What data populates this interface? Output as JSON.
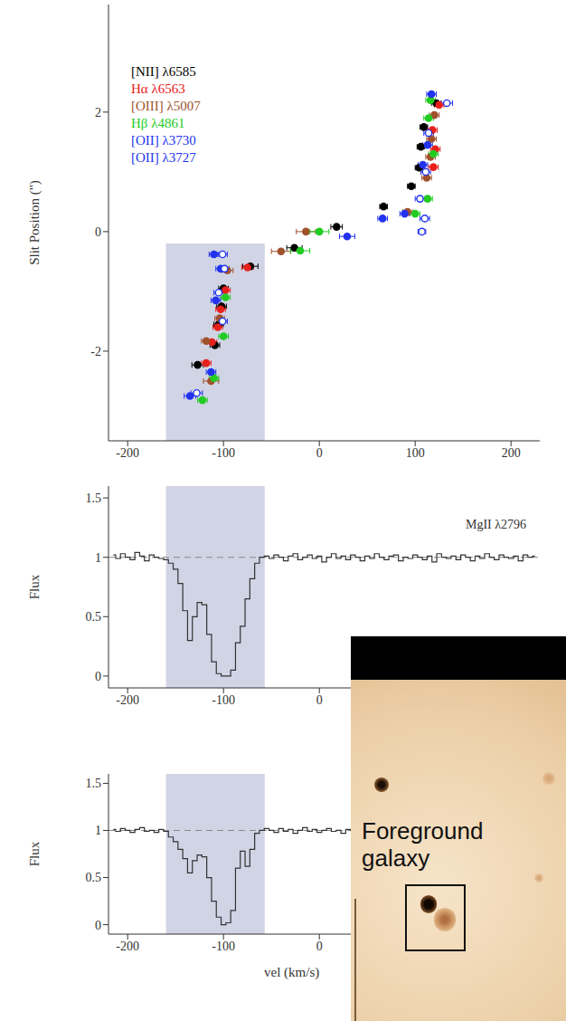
{
  "chart_data": [
    {
      "type": "scatter",
      "xlim": [
        -220,
        230
      ],
      "xticks": [
        -200,
        -100,
        0,
        100,
        200
      ],
      "ylim": [
        -3.5,
        3.8
      ],
      "yticks": [
        -2,
        0,
        2
      ],
      "y_label": "Slit Position (\")",
      "legend": "upper left",
      "highlight": {
        "x": [
          -160,
          -57
        ],
        "y": [
          -3.5,
          -0.2
        ],
        "color": "#c9cce1"
      },
      "series": [
        {
          "name": "[NII] λ6585",
          "color": "#000000",
          "marker": "circle",
          "x": [
            -127,
            -109,
            -105,
            -102,
            -100,
            -72,
            -26,
            18,
            67,
            96,
            104,
            106,
            109,
            122
          ],
          "y": [
            -2.23,
            -1.9,
            -1.55,
            -1.25,
            -0.95,
            -0.58,
            -0.27,
            0.08,
            0.42,
            0.76,
            1.07,
            1.42,
            1.75,
            2.15
          ],
          "xerr": [
            6,
            5,
            5,
            5,
            5,
            8,
            8,
            6,
            4,
            4,
            4,
            4,
            4,
            5
          ]
        },
        {
          "name": "Hα λ6563",
          "color": "#e8201c",
          "marker": "circle",
          "x": [
            -118,
            -112,
            -106,
            -103,
            -98,
            -75,
            119,
            121,
            118,
            125
          ],
          "y": [
            -2.2,
            -1.85,
            -1.6,
            -1.3,
            -0.98,
            -0.6,
            1.08,
            1.38,
            1.7,
            2.12
          ],
          "xerr": [
            5,
            5,
            5,
            5,
            5,
            6,
            5,
            5,
            5,
            5
          ]
        },
        {
          "name": "[OIII] λ5007",
          "color": "#a0522d",
          "marker": "circle",
          "x": [
            -113,
            -118,
            -104,
            -96,
            -40,
            -14,
            92,
            112,
            116,
            117,
            120
          ],
          "y": [
            -2.5,
            -1.83,
            -1.45,
            -0.65,
            -0.33,
            0.0,
            0.33,
            0.9,
            1.25,
            1.55,
            1.95
          ],
          "xerr": [
            8,
            5,
            5,
            6,
            10,
            10,
            5,
            5,
            5,
            5,
            5
          ]
        },
        {
          "name": "Hβ λ4861",
          "color": "#22cc22",
          "marker": "circle",
          "x": [
            -122,
            -110,
            -100,
            -98,
            -20,
            0,
            100,
            113,
            119,
            114,
            116
          ],
          "y": [
            -2.82,
            -2.45,
            -1.75,
            -1.1,
            -0.32,
            0.0,
            0.3,
            0.55,
            1.3,
            1.9,
            2.2
          ],
          "xerr": [
            5,
            5,
            5,
            5,
            10,
            10,
            5,
            5,
            5,
            5,
            5
          ]
        },
        {
          "name": "[OII] λ3730",
          "color": "#2233ee",
          "marker": "circle",
          "x": [
            -135,
            -113,
            -108,
            -103,
            -110,
            29,
            66,
            89,
            108,
            113,
            117
          ],
          "y": [
            -2.75,
            -2.35,
            -1.15,
            -0.62,
            -0.38,
            -0.08,
            0.22,
            0.3,
            1.12,
            1.45,
            2.3
          ],
          "xerr": [
            6,
            5,
            5,
            5,
            5,
            8,
            5,
            5,
            5,
            5,
            5
          ]
        },
        {
          "name": "[OII] λ3727",
          "color": "#2233ee",
          "marker": "open",
          "x": [
            -128,
            -101,
            -105,
            -99,
            -101,
            107,
            110,
            105,
            111,
            114,
            133
          ],
          "y": [
            -2.7,
            -1.5,
            -1.02,
            -0.62,
            -0.38,
            0.0,
            0.22,
            0.55,
            1.0,
            1.65,
            2.15
          ],
          "xerr": [
            6,
            5,
            5,
            5,
            5,
            4,
            5,
            5,
            5,
            5,
            6
          ]
        }
      ]
    },
    {
      "type": "line",
      "line_style": "step",
      "color": "#333333",
      "annotation": "MgII λ2796",
      "y_label": "Flux",
      "xlim": [
        -220,
        230
      ],
      "xticks": [
        -200,
        -100,
        0
      ],
      "ylim": [
        -0.1,
        1.6
      ],
      "yticks": [
        0,
        0.5,
        1,
        1.5
      ],
      "continuum": 1,
      "highlight": {
        "x": [
          -160,
          -57
        ],
        "color": "#c9cce1"
      },
      "x": [
        -215,
        -210,
        -205,
        -200,
        -195,
        -190,
        -185,
        -180,
        -175,
        -170,
        -165,
        -160,
        -155,
        -150,
        -145,
        -140,
        -135,
        -130,
        -125,
        -120,
        -115,
        -110,
        -105,
        -100,
        -95,
        -90,
        -85,
        -80,
        -75,
        -70,
        -65,
        -60,
        -55,
        -50,
        -45,
        -40,
        -35,
        -30,
        -25,
        -20,
        -15,
        -10,
        -5,
        0,
        5,
        10,
        15,
        20,
        25,
        30,
        35,
        40,
        45,
        50,
        55,
        60,
        65,
        70,
        75,
        80,
        85,
        90,
        95,
        100,
        105,
        110,
        115,
        120,
        125,
        130,
        135,
        140,
        145,
        150,
        155,
        160,
        165,
        170,
        175,
        180,
        185,
        190,
        195,
        200,
        205,
        210,
        215,
        220,
        225
      ],
      "values": [
        1.02,
        0.99,
        1.03,
        1.0,
        0.98,
        1.04,
        1.01,
        0.97,
        1.02,
        1.0,
        0.99,
        0.98,
        0.95,
        0.9,
        0.78,
        0.55,
        0.3,
        0.5,
        0.62,
        0.6,
        0.35,
        0.12,
        0.02,
        0.0,
        0.0,
        0.05,
        0.28,
        0.42,
        0.65,
        0.82,
        0.95,
        1.0,
        1.01,
        0.99,
        1.02,
        1.0,
        0.97,
        1.01,
        1.03,
        0.98,
        1.0,
        1.02,
        0.99,
        1.01,
        0.96,
        1.0,
        1.03,
        0.99,
        1.01,
        0.98,
        1.02,
        1.0,
        0.97,
        1.01,
        0.99,
        1.03,
        1.0,
        0.98,
        1.01,
        1.02,
        0.97,
        1.0,
        0.99,
        1.02,
        1.0,
        0.98,
        1.01,
        0.96,
        1.03,
        1.0,
        0.99,
        1.01,
        0.98,
        1.02,
        1.0,
        0.97,
        1.01,
        0.99,
        1.03,
        1.0,
        0.98,
        1.02,
        1.0,
        0.99,
        1.01,
        0.97,
        1.02,
        1.0,
        1.01
      ]
    },
    {
      "type": "line",
      "line_style": "step",
      "color": "#333333",
      "y_label": "Flux",
      "x_label": "vel (km/s)",
      "xlim": [
        -220,
        230
      ],
      "xticks": [
        -200,
        -100,
        0
      ],
      "ylim": [
        -0.1,
        1.6
      ],
      "yticks": [
        0,
        0.5,
        1,
        1.5
      ],
      "continuum": 1,
      "highlight": {
        "x": [
          -160,
          -57
        ],
        "color": "#c9cce1"
      },
      "x": [
        -215,
        -210,
        -205,
        -200,
        -195,
        -190,
        -185,
        -180,
        -175,
        -170,
        -165,
        -160,
        -155,
        -150,
        -145,
        -140,
        -135,
        -130,
        -125,
        -120,
        -115,
        -110,
        -105,
        -100,
        -95,
        -90,
        -85,
        -80,
        -75,
        -70,
        -65,
        -60,
        -55,
        -50,
        -45,
        -40,
        -35,
        -30,
        -25,
        -20,
        -15,
        -10,
        -5,
        0,
        5,
        10,
        15,
        20,
        25,
        30,
        35
      ],
      "values": [
        1.01,
        0.99,
        1.02,
        1.0,
        0.98,
        1.01,
        1.03,
        0.99,
        1.0,
        0.98,
        1.01,
        0.99,
        0.93,
        0.88,
        0.8,
        0.7,
        0.55,
        0.68,
        0.74,
        0.72,
        0.5,
        0.25,
        0.08,
        0.0,
        0.02,
        0.15,
        0.6,
        0.78,
        0.62,
        0.8,
        0.97,
        1.0,
        1.02,
        1.0,
        0.98,
        1.02,
        0.99,
        1.01,
        0.97,
        1.0,
        1.03,
        0.99,
        1.01,
        0.98,
        1.0,
        1.02,
        0.99,
        1.0,
        0.97,
        1.01,
        1.0
      ]
    }
  ],
  "inset": {
    "text": "Foreground galaxy"
  }
}
